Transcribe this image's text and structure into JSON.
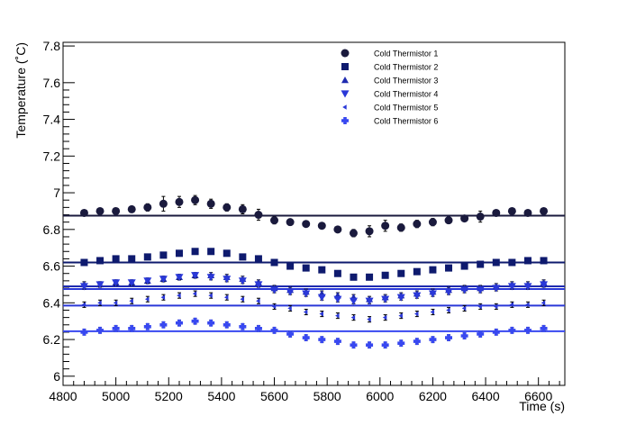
{
  "chart_data": {
    "type": "scatter",
    "xlabel": "Time (s)",
    "ylabel": "Temperature (˚C)",
    "xlim": [
      4800,
      6700
    ],
    "ylim": [
      5.95,
      7.82
    ],
    "x_ticks": [
      4800,
      5000,
      5200,
      5400,
      5600,
      5800,
      6000,
      6200,
      6400,
      6600
    ],
    "y_ticks": [
      6,
      6.2,
      6.4,
      6.6,
      6.8,
      7,
      7.2,
      7.4,
      7.6,
      7.8
    ],
    "x_tick_labels": [
      "4800",
      "5000",
      "5200",
      "5400",
      "5600",
      "5800",
      "6000",
      "6200",
      "6400",
      "6600"
    ],
    "y_tick_labels": [
      "6",
      "6.2",
      "6.4",
      "6.6",
      "6.8",
      "7",
      "7.2",
      "7.4",
      "7.6",
      "7.8"
    ],
    "legend_position": "top-right",
    "x": [
      4880,
      4940,
      5000,
      5060,
      5120,
      5180,
      5240,
      5300,
      5360,
      5420,
      5480,
      5540,
      5600,
      5660,
      5720,
      5780,
      5840,
      5900,
      5960,
      6020,
      6080,
      6140,
      6200,
      6260,
      6320,
      6380,
      6440,
      6500,
      6560,
      6620
    ],
    "series": [
      {
        "name": "Cold Thermistor 1",
        "marker": "circle",
        "color": "#1a1a3d",
        "mean": 6.875,
        "values": [
          6.89,
          6.9,
          6.9,
          6.91,
          6.92,
          6.94,
          6.95,
          6.96,
          6.94,
          6.92,
          6.91,
          6.88,
          6.85,
          6.84,
          6.83,
          6.82,
          6.8,
          6.78,
          6.79,
          6.82,
          6.81,
          6.83,
          6.84,
          6.85,
          6.86,
          6.87,
          6.89,
          6.9,
          6.89,
          6.9
        ],
        "errors": [
          0.015,
          0.015,
          0.015,
          0.015,
          0.02,
          0.04,
          0.03,
          0.025,
          0.025,
          0.02,
          0.025,
          0.03,
          0.02,
          0.015,
          0.015,
          0.01,
          0.01,
          0.02,
          0.03,
          0.03,
          0.02,
          0.02,
          0.02,
          0.015,
          0.015,
          0.03,
          0.01,
          0.015,
          0.015,
          0.015
        ]
      },
      {
        "name": "Cold Thermistor 2",
        "marker": "square",
        "color": "#0e1a6e",
        "mean": 6.62,
        "values": [
          6.62,
          6.63,
          6.64,
          6.64,
          6.65,
          6.66,
          6.67,
          6.68,
          6.68,
          6.67,
          6.65,
          6.64,
          6.62,
          6.6,
          6.59,
          6.58,
          6.56,
          6.54,
          6.54,
          6.55,
          6.56,
          6.57,
          6.58,
          6.59,
          6.6,
          6.61,
          6.62,
          6.62,
          6.63,
          6.63
        ]
      },
      {
        "name": "Cold Thermistor 3",
        "marker": "triangle-up",
        "color": "#1f2bb0",
        "mean": 6.49,
        "values": [
          6.5,
          6.5,
          6.51,
          6.51,
          6.52,
          6.53,
          6.54,
          6.55,
          6.55,
          6.54,
          6.53,
          6.51,
          6.48,
          6.47,
          6.46,
          6.45,
          6.44,
          6.43,
          6.42,
          6.43,
          6.44,
          6.45,
          6.46,
          6.47,
          6.48,
          6.48,
          6.49,
          6.5,
          6.5,
          6.51
        ]
      },
      {
        "name": "Cold Thermistor 4",
        "marker": "triangle-down",
        "color": "#2a38d8",
        "mean": 6.475,
        "values": [
          6.49,
          6.5,
          6.51,
          6.51,
          6.52,
          6.53,
          6.54,
          6.55,
          6.54,
          6.53,
          6.52,
          6.5,
          6.47,
          6.46,
          6.45,
          6.43,
          6.42,
          6.41,
          6.41,
          6.42,
          6.43,
          6.44,
          6.45,
          6.46,
          6.47,
          6.47,
          6.48,
          6.49,
          6.49,
          6.5
        ]
      },
      {
        "name": "Cold Thermistor 5",
        "marker": "triangle-left",
        "color": "#2a38d8",
        "mean": 6.385,
        "values": [
          6.39,
          6.4,
          6.4,
          6.41,
          6.42,
          6.43,
          6.44,
          6.45,
          6.44,
          6.43,
          6.42,
          6.41,
          6.38,
          6.37,
          6.35,
          6.34,
          6.33,
          6.32,
          6.31,
          6.32,
          6.33,
          6.34,
          6.35,
          6.36,
          6.37,
          6.38,
          6.38,
          6.39,
          6.39,
          6.4
        ]
      },
      {
        "name": "Cold Thermistor 6",
        "marker": "cross",
        "color": "#3848f0",
        "mean": 6.245,
        "values": [
          6.24,
          6.25,
          6.26,
          6.26,
          6.27,
          6.28,
          6.29,
          6.3,
          6.29,
          6.28,
          6.27,
          6.26,
          6.25,
          6.23,
          6.21,
          6.2,
          6.19,
          6.17,
          6.17,
          6.17,
          6.18,
          6.19,
          6.2,
          6.21,
          6.22,
          6.23,
          6.24,
          6.25,
          6.25,
          6.26
        ]
      }
    ]
  }
}
